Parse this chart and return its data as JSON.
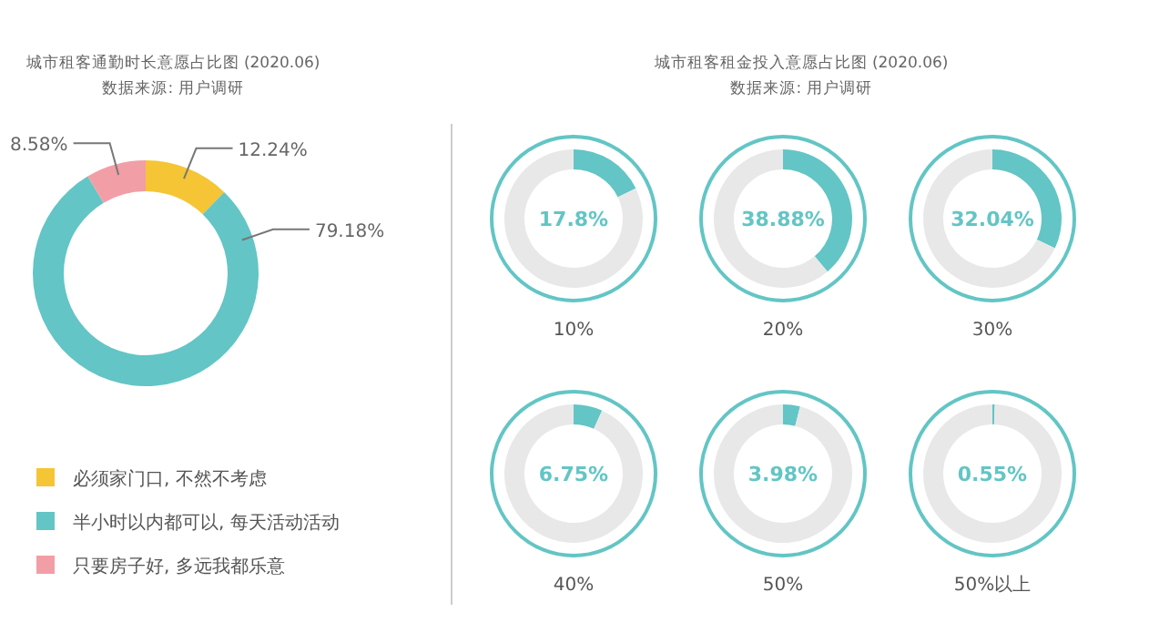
{
  "chart_data": [
    {
      "type": "donut",
      "title": "城市租客通勤时长意愿占比图 (2020.06)",
      "subtitle": "数据来源: 用户调研",
      "categories": [
        "必须家门口, 不然不考虑",
        "半小时以内都可以, 每天活动活动",
        "只要房子好, 多远我都乐意"
      ],
      "values": [
        12.24,
        79.18,
        8.58
      ],
      "colors": [
        "#f5c535",
        "#63c5c5",
        "#f29ea6"
      ],
      "value_labels": [
        "12.24%",
        "79.18%",
        "8.58%"
      ],
      "legend": "bottom"
    },
    {
      "type": "other",
      "title": "城市租客租金投入意愿占比图 (2020.06)",
      "subtitle": "数据来源: 用户调研"
    },
    {
      "type": "donut",
      "xlabel": "10%",
      "annotations": [
        "17.8%"
      ],
      "categories": [
        null,
        null
      ],
      "values": [
        17.8,
        82.2
      ],
      "colors": [
        "#63c5c5",
        "#e8e8e8"
      ]
    },
    {
      "type": "donut",
      "xlabel": "20%",
      "annotations": [
        "38.88%"
      ],
      "categories": [
        null,
        null
      ],
      "values": [
        38.88,
        61.12
      ],
      "colors": [
        "#63c5c5",
        "#e8e8e8"
      ]
    },
    {
      "type": "donut",
      "xlabel": "30%",
      "annotations": [
        "32.04%"
      ],
      "categories": [
        null,
        null
      ],
      "values": [
        32.04,
        67.96
      ],
      "colors": [
        "#63c5c5",
        "#e8e8e8"
      ]
    },
    {
      "type": "donut",
      "xlabel": "40%",
      "annotations": [
        "6.75%"
      ],
      "categories": [
        null,
        null
      ],
      "values": [
        6.75,
        93.25
      ],
      "colors": [
        "#63c5c5",
        "#e8e8e8"
      ]
    },
    {
      "type": "donut",
      "xlabel": "50%",
      "annotations": [
        "3.98%"
      ],
      "categories": [
        null,
        null
      ],
      "values": [
        3.98,
        96.02
      ],
      "colors": [
        "#63c5c5",
        "#e8e8e8"
      ]
    },
    {
      "type": "donut",
      "xlabel": "50%以上",
      "annotations": [
        "0.55%"
      ],
      "categories": [
        null,
        null
      ],
      "values": [
        0.55,
        99.45
      ],
      "colors": [
        "#63c5c5",
        "#e8e8e8"
      ]
    }
  ]
}
